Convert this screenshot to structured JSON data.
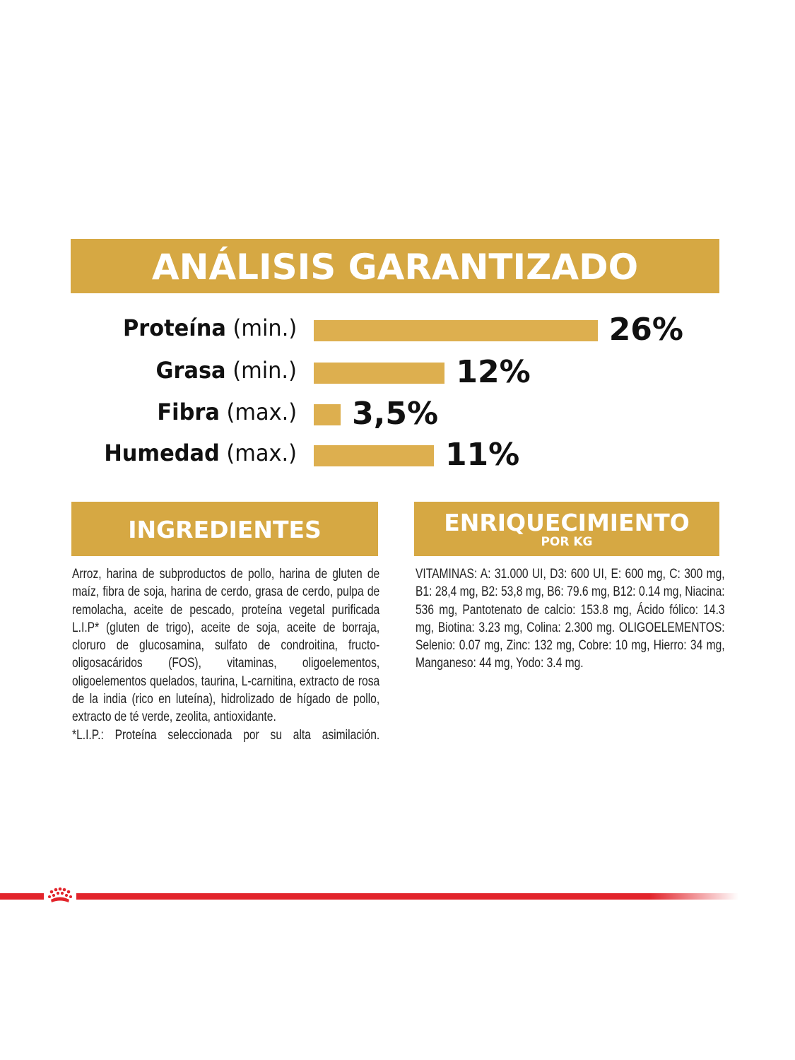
{
  "title": "ANÁLISIS GARANTIZADO",
  "chart_data": {
    "type": "bar",
    "orientation": "horizontal",
    "categories": [
      "Proteína",
      "Grasa",
      "Fibra",
      "Humedad"
    ],
    "qualifiers": [
      "(min.)",
      "(min.)",
      "(max.)",
      "(max.)"
    ],
    "values": [
      26,
      12,
      3.5,
      11
    ],
    "value_labels": [
      "26%",
      "12%",
      "3,5%",
      "11%"
    ],
    "unit": "%",
    "grid": false,
    "bar_color": "#DDAF4F"
  },
  "ingredients": {
    "heading": "INGREDIENTES",
    "text": "Arroz, harina de subproductos de pollo, harina de gluten de maíz, fibra de soja, harina de cerdo, grasa de cerdo, pulpa de remolacha, aceite de pescado, proteína vegetal purificada L.I.P* (gluten de trigo), aceite de soja, aceite de borraja, cloruro de glucosamina, sulfato de condroitina, fructo-oligosacáridos (FOS), vitaminas, oligoelementos, oligoelementos quelados, taurina, L-carnitina, extracto de rosa de la india (rico en luteína), hidrolizado de hígado de pollo, extracto de té verde, zeolita, antioxidante.",
    "footnote": "*L.I.P.: Proteína seleccionada por su alta asimilación."
  },
  "enrichment": {
    "heading": "ENRIQUECIMIENTO",
    "subheading": "POR KG",
    "vitamins": "VITAMINAS: A: 31.000 UI, D3: 600 UI, E: 600 mg, C: 300 mg, B1: 28,4 mg, B2: 53,8 mg, B6: 79.6 mg, B12: 0.14 mg, Niacina: 536 mg, Pantotenato de calcio: 153.8 mg, Ácido fólico: 14.3 mg, Biotina: 3.23 mg, Colina: 2.300 mg.",
    "trace_elements": "OLIGOELEMENTOS: Selenio: 0.07 mg, Zinc: 132 mg, Cobre: 10 mg, Hierro: 34 mg, Manganeso: 44 mg, Yodo: 3.4 mg."
  },
  "colors": {
    "gold": "#D6A843",
    "brand_red": "#E2242B"
  },
  "footer": {
    "logo_icon": "crown-icon"
  }
}
